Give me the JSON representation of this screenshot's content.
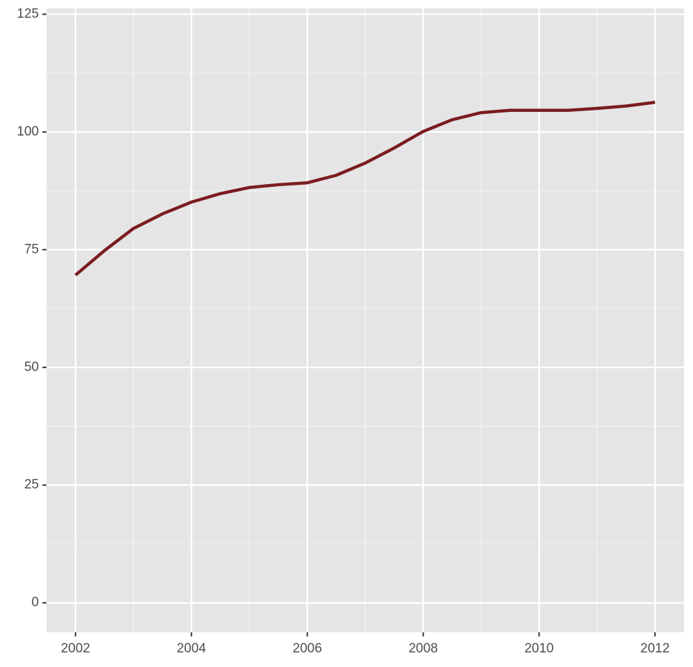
{
  "chart_data": {
    "type": "line",
    "x": [
      2002,
      2002.5,
      2003,
      2003.5,
      2004,
      2004.5,
      2005,
      2005.5,
      2006,
      2006.5,
      2007,
      2007.5,
      2008,
      2008.5,
      2009,
      2009.5,
      2010,
      2010.5,
      2011,
      2011.5,
      2012
    ],
    "series": [
      {
        "color": "#7b1c20",
        "values": [
          69.6,
          74.8,
          79.5,
          82.6,
          85.1,
          86.9,
          88.2,
          88.8,
          89.2,
          90.8,
          93.4,
          96.6,
          100.1,
          102.6,
          104.1,
          104.6,
          104.6,
          104.6,
          105.0,
          105.5,
          106.3
        ]
      }
    ],
    "xlim": [
      2001.5,
      2012.5
    ],
    "xticks": [
      2002,
      2004,
      2006,
      2008,
      2010,
      2012
    ],
    "ylim": [
      -6.25,
      126.25
    ],
    "yticks": [
      0,
      25,
      50,
      75,
      100,
      125
    ],
    "grid": true,
    "minor_grid": true
  }
}
